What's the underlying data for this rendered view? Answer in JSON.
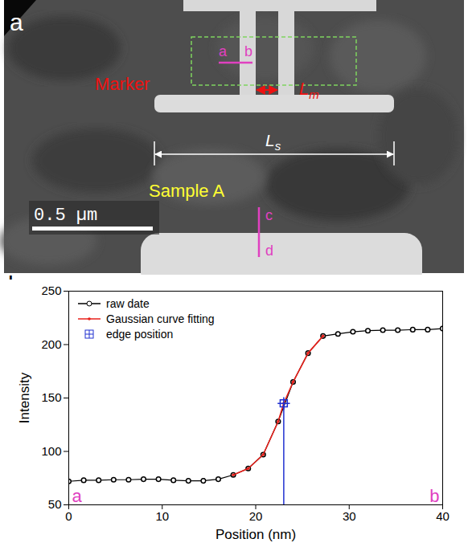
{
  "panel_a": {
    "panel_label": "a",
    "marker_label": "Marker",
    "marker_width": {
      "symbol": "L",
      "subscript": "m"
    },
    "sample_length": {
      "symbol": "L",
      "subscript": "s"
    },
    "sample_label": "Sample A",
    "scale_bar": "0.5 µm",
    "line_ab": [
      "a",
      "b"
    ],
    "line_cd": [
      "c",
      "d"
    ]
  },
  "chart_data": {
    "type": "line",
    "panel_label": "b",
    "x_label": "Position (nm)",
    "y_label": "Intensity",
    "xlim": [
      0,
      40
    ],
    "ylim": [
      50,
      250
    ],
    "xticks": [
      0,
      10,
      20,
      30,
      40
    ],
    "yticks": [
      50,
      100,
      150,
      200,
      250
    ],
    "legend": "top-left",
    "annotations": [
      {
        "text": "a",
        "x": 0,
        "y": 58
      },
      {
        "text": "b",
        "x": 40,
        "y": 58
      }
    ],
    "series": [
      {
        "name": "raw date",
        "color": "#000000",
        "type": "line",
        "marker": "circle",
        "x": [
          0,
          1.6,
          3.2,
          4.8,
          6.4,
          8,
          9.6,
          11.2,
          12.8,
          14.4,
          16,
          17.6,
          19.2,
          20.8,
          22.4,
          24,
          25.6,
          27.2,
          28.8,
          30.4,
          32,
          33.6,
          35.2,
          36.8,
          38.4,
          40
        ],
        "values": [
          72,
          73,
          73,
          73.5,
          73.5,
          74,
          74,
          73,
          72.5,
          72.5,
          74,
          78,
          84,
          97,
          128,
          165,
          192,
          208,
          210,
          212,
          213,
          213.5,
          213.5,
          214,
          214,
          215
        ]
      },
      {
        "name": "Gaussian curve fitting",
        "color": "#e8211b",
        "type": "line",
        "marker": "dot",
        "x": [
          17.6,
          19.2,
          20.8,
          22.4,
          23,
          24,
          25.6,
          27.2
        ],
        "values": [
          78,
          84,
          97,
          128,
          145,
          165,
          192,
          208
        ]
      },
      {
        "name": "edge position",
        "color": "#2030d0",
        "type": "drop_line",
        "marker": "square",
        "x": [
          23
        ],
        "values": [
          145
        ]
      }
    ]
  }
}
